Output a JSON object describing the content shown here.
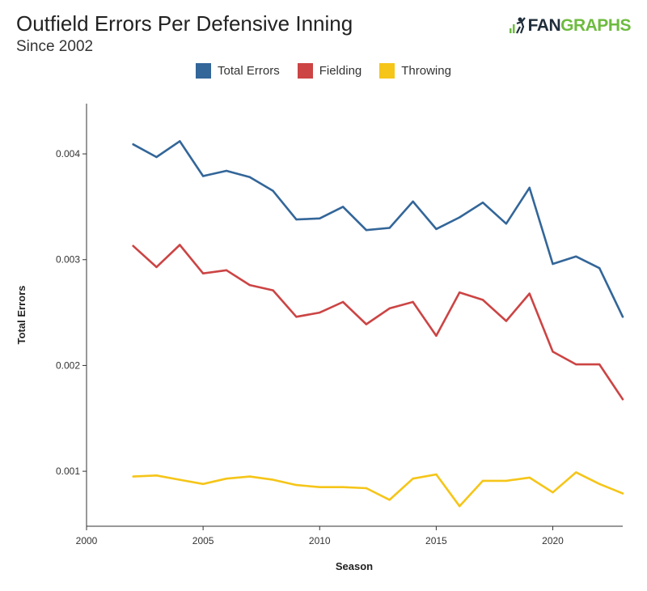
{
  "header": {
    "title": "Outfield Errors Per Defensive Inning",
    "subtitle": "Since 2002",
    "brand_fan": "FAN",
    "brand_graphs": "GRAPHS"
  },
  "chart_data": {
    "type": "line",
    "xlabel": "Season",
    "ylabel": "Total Errors",
    "xlim": [
      2000,
      2023
    ],
    "ylim": [
      0.0004804,
      0.004475
    ],
    "xticks": [
      2000,
      2005,
      2010,
      2015,
      2020
    ],
    "xtick_labels": [
      "2000",
      "2005",
      "2010",
      "2015",
      "2020"
    ],
    "yticks": [
      0.001,
      0.002,
      0.003,
      0.004
    ],
    "ytick_labels": [
      "0.001",
      "0.002",
      "0.003",
      "0.004"
    ],
    "legend_position": "top-center",
    "grid": false,
    "x": [
      2002,
      2003,
      2004,
      2005,
      2006,
      2007,
      2008,
      2009,
      2010,
      2011,
      2012,
      2013,
      2014,
      2015,
      2016,
      2017,
      2018,
      2019,
      2020,
      2021,
      2022,
      2023
    ],
    "series": [
      {
        "name": "Total Errors",
        "color": "#336699",
        "values": [
          0.00409,
          0.00397,
          0.00412,
          0.00379,
          0.00384,
          0.00378,
          0.00365,
          0.00338,
          0.00339,
          0.0035,
          0.00328,
          0.0033,
          0.00355,
          0.00329,
          0.0034,
          0.00354,
          0.00334,
          0.00368,
          0.00296,
          0.00303,
          0.00292,
          0.00246
        ]
      },
      {
        "name": "Fielding",
        "color": "#cc4444",
        "values": [
          0.00313,
          0.00293,
          0.00314,
          0.00287,
          0.0029,
          0.00276,
          0.00271,
          0.00246,
          0.0025,
          0.0026,
          0.00239,
          0.00254,
          0.0026,
          0.00228,
          0.00269,
          0.00262,
          0.00242,
          0.00268,
          0.00213,
          0.00201,
          0.00201,
          0.00168
        ]
      },
      {
        "name": "Throwing",
        "color": "#f5c518",
        "values": [
          0.00095,
          0.00096,
          0.00092,
          0.00088,
          0.00093,
          0.00095,
          0.00092,
          0.00087,
          0.00085,
          0.00085,
          0.00084,
          0.00073,
          0.00093,
          0.00097,
          0.00067,
          0.00091,
          0.00091,
          0.00094,
          0.0008,
          0.00099,
          0.00088,
          0.00079
        ]
      }
    ]
  }
}
